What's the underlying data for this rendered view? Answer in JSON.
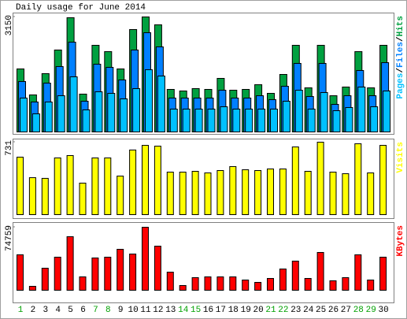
{
  "chart_data": [
    {
      "type": "bar",
      "title": "Daily usage for June 2014",
      "ylim": [
        0,
        3150
      ],
      "yticks": [
        3150
      ],
      "legend_separator": "/",
      "series": [
        {
          "name": "Pages",
          "color": "#00c0ff",
          "values": [
            928,
            496,
            820,
            992,
            1510,
            604,
            1100,
            1057,
            906,
            1187,
            1704,
            1532,
            626,
            626,
            626,
            626,
            690,
            626,
            626,
            626,
            626,
            841,
            1143,
            626,
            1079,
            582,
            669,
            1230,
            690,
            1122
          ]
        },
        {
          "name": "Files",
          "color": "#0080ff",
          "values": [
            1381,
            820,
            1337,
            1791,
            2459,
            841,
            1855,
            1769,
            1424,
            2244,
            2718,
            2330,
            928,
            928,
            928,
            928,
            1143,
            928,
            928,
            992,
            884,
            1251,
            1877,
            971,
            1877,
            755,
            992,
            1683,
            992,
            1898
          ]
        },
        {
          "name": "Hits",
          "color": "#00a040",
          "values": [
            1726,
            1014,
            1597,
            2244,
            3129,
            1036,
            2373,
            2200,
            1726,
            2805,
            3150,
            2934,
            1165,
            1122,
            1187,
            1165,
            1467,
            1143,
            1165,
            1294,
            1057,
            1575,
            2373,
            1208,
            2373,
            992,
            1230,
            2200,
            1208,
            2373
          ]
        }
      ]
    },
    {
      "type": "bar",
      "ylim": [
        0,
        731
      ],
      "yticks": [
        731
      ],
      "series": [
        {
          "name": "Visits",
          "color": "#ffff00",
          "values": [
            580,
            373,
            366,
            572,
            596,
            318,
            572,
            572,
            389,
            652,
            699,
            691,
            429,
            429,
            437,
            421,
            445,
            485,
            453,
            445,
            461,
            461,
            683,
            437,
            731,
            429,
            413,
            715,
            421,
            699
          ]
        }
      ]
    },
    {
      "type": "bar",
      "ylim": [
        0,
        74759
      ],
      "yticks": [
        74759
      ],
      "categories": [
        "1",
        "2",
        "3",
        "4",
        "5",
        "6",
        "7",
        "8",
        "9",
        "10",
        "11",
        "12",
        "13",
        "14",
        "15",
        "16",
        "17",
        "18",
        "19",
        "20",
        "21",
        "22",
        "23",
        "24",
        "25",
        "26",
        "27",
        "28",
        "29",
        "30"
      ],
      "label_colors": [
        "#00a000",
        "#000000",
        "#000000",
        "#000000",
        "#000000",
        "#000000",
        "#00a000",
        "#00a000",
        "#000000",
        "#000000",
        "#000000",
        "#000000",
        "#000000",
        "#00a000",
        "#00a000",
        "#000000",
        "#000000",
        "#000000",
        "#000000",
        "#000000",
        "#00a000",
        "#00a000",
        "#000000",
        "#000000",
        "#000000",
        "#000000",
        "#000000",
        "#00a000",
        "#00a000",
        "#000000"
      ],
      "series": [
        {
          "name": "KBytes",
          "color": "#ff0000",
          "values": [
            42053,
            4673,
            26166,
            39249,
            63546,
            15887,
            38315,
            39249,
            48594,
            42987,
            74759,
            52332,
            21494,
            5607,
            14952,
            15887,
            15887,
            15887,
            12149,
            9345,
            14018,
            25232,
            34577,
            14018,
            44856,
            11214,
            14952,
            42053,
            12149,
            39249
          ]
        }
      ]
    }
  ]
}
